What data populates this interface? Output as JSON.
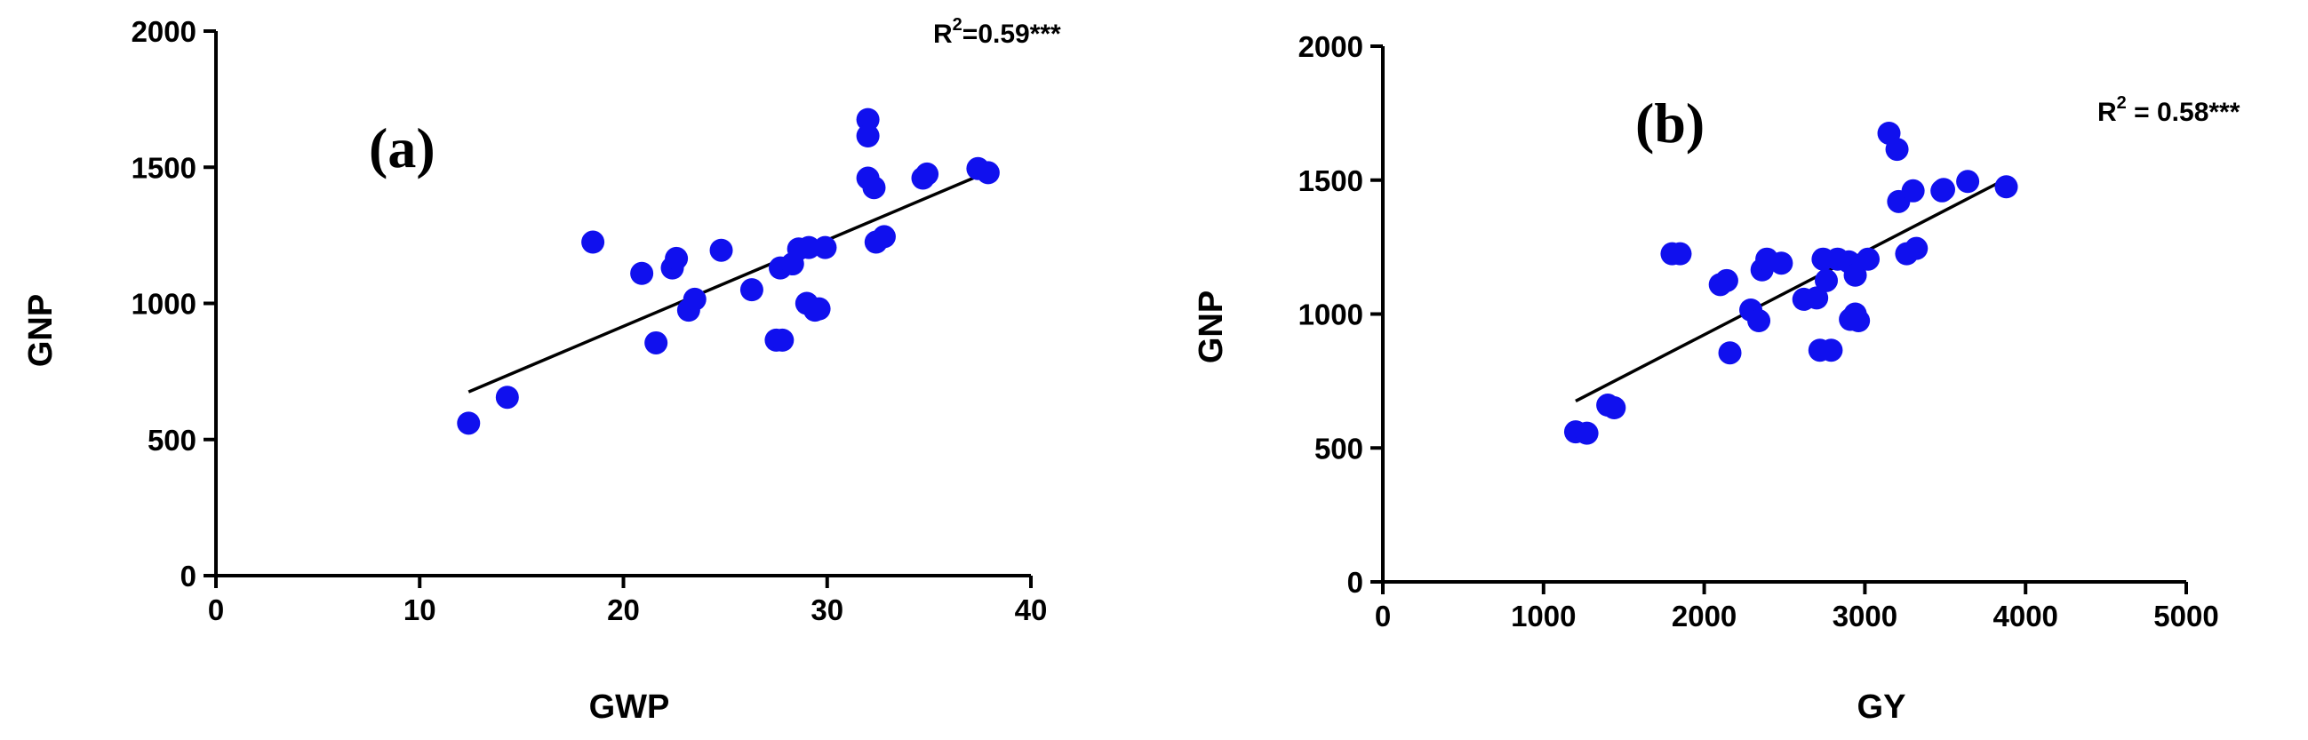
{
  "chart_data": [
    {
      "type": "scatter",
      "panel_label": "(a)",
      "xlabel": "GWP",
      "ylabel": "GNP",
      "xlim": [
        0,
        40
      ],
      "ylim": [
        0,
        2000
      ],
      "xticks": [
        0,
        10,
        20,
        30,
        40
      ],
      "yticks": [
        0,
        500,
        1000,
        1500,
        2000
      ],
      "annotation": {
        "prefix": "R",
        "sup": "2",
        "suffix": "=0.59***"
      },
      "marker_color": "#1010ee",
      "trendline": {
        "x": [
          12.4,
          37.8
        ],
        "y": [
          675,
          1480
        ]
      },
      "points": [
        [
          12.4,
          560
        ],
        [
          14.3,
          655
        ],
        [
          18.5,
          1225
        ],
        [
          20.9,
          1110
        ],
        [
          21.6,
          855
        ],
        [
          22.4,
          1130
        ],
        [
          22.6,
          1165
        ],
        [
          23.2,
          975
        ],
        [
          23.5,
          1015
        ],
        [
          24.8,
          1195
        ],
        [
          26.3,
          1050
        ],
        [
          27.5,
          865
        ],
        [
          27.8,
          865
        ],
        [
          27.7,
          1130
        ],
        [
          28.3,
          1145
        ],
        [
          28.6,
          1200
        ],
        [
          29.0,
          1000
        ],
        [
          29.1,
          1205
        ],
        [
          29.4,
          975
        ],
        [
          29.6,
          980
        ],
        [
          29.9,
          1205
        ],
        [
          32.0,
          1675
        ],
        [
          32.0,
          1615
        ],
        [
          32.0,
          1460
        ],
        [
          32.3,
          1425
        ],
        [
          32.4,
          1225
        ],
        [
          32.8,
          1245
        ],
        [
          34.7,
          1460
        ],
        [
          34.9,
          1475
        ],
        [
          37.4,
          1495
        ],
        [
          37.9,
          1480
        ]
      ]
    },
    {
      "type": "scatter",
      "panel_label": "(b)",
      "xlabel": "GY",
      "ylabel": "GNP",
      "xlim": [
        0,
        5000
      ],
      "ylim": [
        0,
        2000
      ],
      "xticks": [
        0,
        1000,
        2000,
        3000,
        4000,
        5000
      ],
      "yticks": [
        0,
        500,
        1000,
        1500,
        2000
      ],
      "annotation": {
        "prefix": "R",
        "sup": "2",
        "suffix": " = 0.58***"
      },
      "marker_color": "#1010ee",
      "trendline": {
        "x": [
          1200,
          3880
        ],
        "y": [
          675,
          1505
        ]
      },
      "points": [
        [
          1200,
          560
        ],
        [
          1270,
          555
        ],
        [
          1400,
          660
        ],
        [
          1440,
          650
        ],
        [
          1800,
          1225
        ],
        [
          1850,
          1225
        ],
        [
          2100,
          1110
        ],
        [
          2140,
          1125
        ],
        [
          2160,
          855
        ],
        [
          2290,
          1015
        ],
        [
          2340,
          975
        ],
        [
          2360,
          1165
        ],
        [
          2390,
          1205
        ],
        [
          2480,
          1190
        ],
        [
          2620,
          1055
        ],
        [
          2700,
          1060
        ],
        [
          2720,
          865
        ],
        [
          2790,
          865
        ],
        [
          2740,
          1205
        ],
        [
          2760,
          1125
        ],
        [
          2830,
          1205
        ],
        [
          2900,
          1195
        ],
        [
          2910,
          980
        ],
        [
          2940,
          1000
        ],
        [
          2940,
          1145
        ],
        [
          2960,
          975
        ],
        [
          3020,
          1205
        ],
        [
          3150,
          1675
        ],
        [
          3200,
          1615
        ],
        [
          3210,
          1420
        ],
        [
          3260,
          1225
        ],
        [
          3300,
          1460
        ],
        [
          3320,
          1245
        ],
        [
          3480,
          1460
        ],
        [
          3490,
          1465
        ],
        [
          3640,
          1495
        ],
        [
          3880,
          1475
        ]
      ]
    }
  ]
}
